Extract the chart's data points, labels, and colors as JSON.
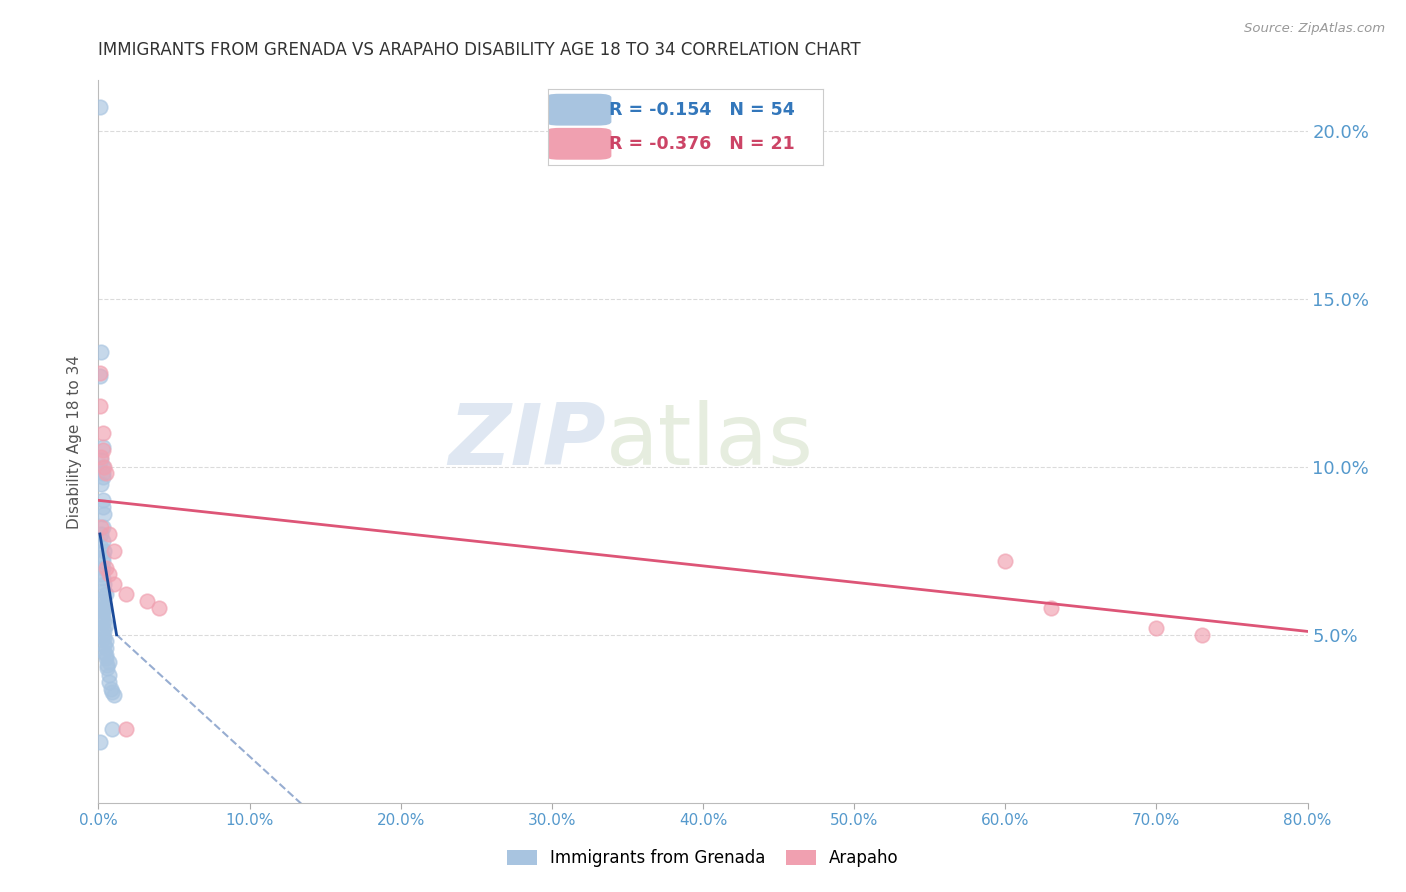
{
  "title": "IMMIGRANTS FROM GRENADA VS ARAPAHO DISABILITY AGE 18 TO 34 CORRELATION CHART",
  "source": "Source: ZipAtlas.com",
  "ylabel": "Disability Age 18 to 34",
  "xlim": [
    0,
    0.8
  ],
  "ylim": [
    0,
    0.215
  ],
  "xticks": [
    0.0,
    0.1,
    0.2,
    0.3,
    0.4,
    0.5,
    0.6,
    0.7,
    0.8
  ],
  "yticks": [
    0.05,
    0.1,
    0.15,
    0.2
  ],
  "legend_label1": "Immigrants from Grenada",
  "legend_label2": "Arapaho",
  "R1": -0.154,
  "N1": 54,
  "R2": -0.376,
  "N2": 21,
  "blue_color": "#a8c4e0",
  "pink_color": "#f0a0b0",
  "blue_line_color": "#1a4a99",
  "pink_line_color": "#dd5577",
  "blue_scatter": [
    [
      0.001,
      0.207
    ],
    [
      0.002,
      0.134
    ],
    [
      0.001,
      0.127
    ],
    [
      0.003,
      0.106
    ],
    [
      0.002,
      0.102
    ],
    [
      0.003,
      0.1
    ],
    [
      0.003,
      0.098
    ],
    [
      0.003,
      0.097
    ],
    [
      0.002,
      0.095
    ],
    [
      0.003,
      0.09
    ],
    [
      0.003,
      0.088
    ],
    [
      0.004,
      0.086
    ],
    [
      0.003,
      0.082
    ],
    [
      0.002,
      0.08
    ],
    [
      0.003,
      0.078
    ],
    [
      0.002,
      0.076
    ],
    [
      0.004,
      0.075
    ],
    [
      0.003,
      0.073
    ],
    [
      0.003,
      0.072
    ],
    [
      0.003,
      0.07
    ],
    [
      0.002,
      0.068
    ],
    [
      0.003,
      0.067
    ],
    [
      0.004,
      0.065
    ],
    [
      0.004,
      0.063
    ],
    [
      0.005,
      0.062
    ],
    [
      0.003,
      0.061
    ],
    [
      0.003,
      0.06
    ],
    [
      0.004,
      0.059
    ],
    [
      0.004,
      0.058
    ],
    [
      0.003,
      0.057
    ],
    [
      0.003,
      0.056
    ],
    [
      0.003,
      0.055
    ],
    [
      0.004,
      0.054
    ],
    [
      0.005,
      0.053
    ],
    [
      0.003,
      0.052
    ],
    [
      0.004,
      0.051
    ],
    [
      0.003,
      0.05
    ],
    [
      0.004,
      0.049
    ],
    [
      0.005,
      0.048
    ],
    [
      0.004,
      0.047
    ],
    [
      0.005,
      0.046
    ],
    [
      0.004,
      0.045
    ],
    [
      0.005,
      0.044
    ],
    [
      0.005,
      0.043
    ],
    [
      0.007,
      0.042
    ],
    [
      0.006,
      0.041
    ],
    [
      0.006,
      0.04
    ],
    [
      0.007,
      0.038
    ],
    [
      0.007,
      0.036
    ],
    [
      0.008,
      0.034
    ],
    [
      0.009,
      0.033
    ],
    [
      0.01,
      0.032
    ],
    [
      0.009,
      0.022
    ],
    [
      0.001,
      0.018
    ]
  ],
  "pink_scatter": [
    [
      0.001,
      0.128
    ],
    [
      0.001,
      0.118
    ],
    [
      0.003,
      0.11
    ],
    [
      0.002,
      0.103
    ],
    [
      0.004,
      0.1
    ],
    [
      0.005,
      0.098
    ],
    [
      0.002,
      0.082
    ],
    [
      0.007,
      0.08
    ],
    [
      0.01,
      0.075
    ],
    [
      0.005,
      0.07
    ],
    [
      0.007,
      0.068
    ],
    [
      0.01,
      0.065
    ],
    [
      0.018,
      0.062
    ],
    [
      0.032,
      0.06
    ],
    [
      0.04,
      0.058
    ],
    [
      0.6,
      0.072
    ],
    [
      0.63,
      0.058
    ],
    [
      0.7,
      0.052
    ],
    [
      0.73,
      0.05
    ],
    [
      0.018,
      0.022
    ],
    [
      0.003,
      0.105
    ]
  ],
  "blue_line_solid": [
    [
      0.001,
      0.08
    ],
    [
      0.012,
      0.05
    ]
  ],
  "blue_line_dashed": [
    [
      0.012,
      0.05
    ],
    [
      0.17,
      -0.015
    ]
  ],
  "pink_line": [
    [
      0.0,
      0.09
    ],
    [
      0.8,
      0.051
    ]
  ],
  "watermark_zip": "ZIP",
  "watermark_atlas": "atlas",
  "background_color": "#ffffff",
  "grid_color": "#cccccc"
}
